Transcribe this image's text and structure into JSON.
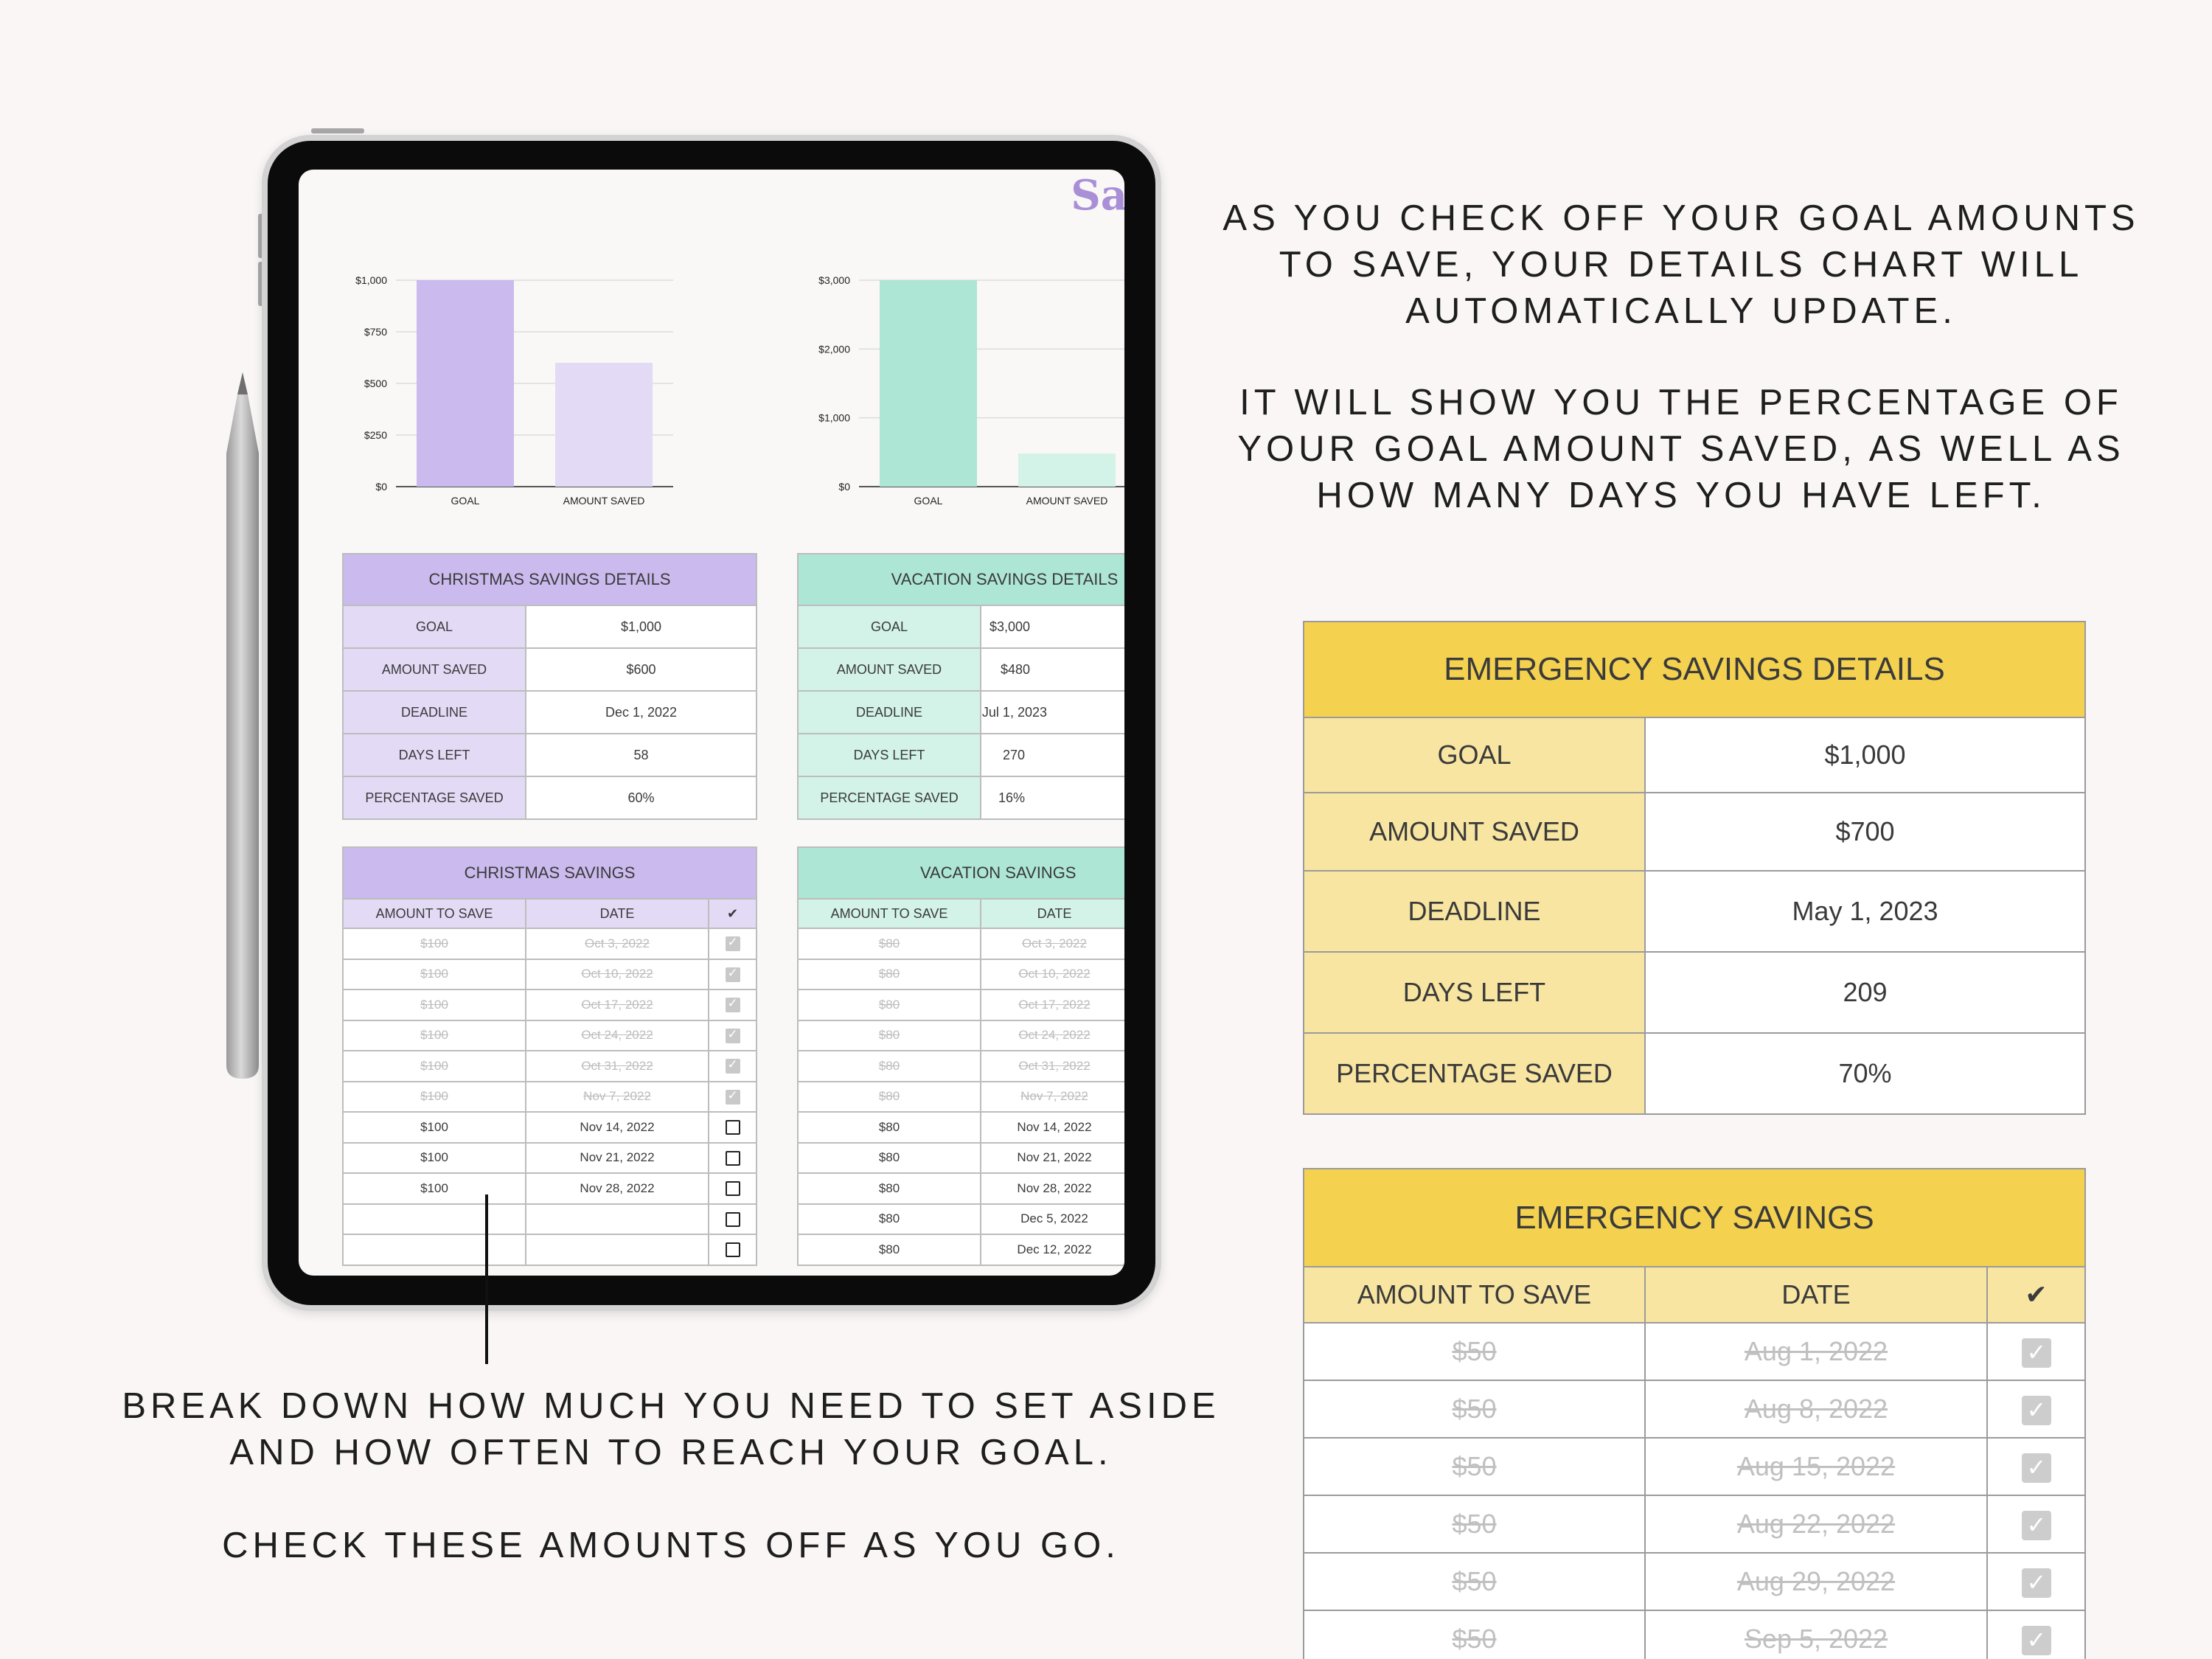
{
  "tablet": {
    "brand_fragment": "Sa",
    "christmas": {
      "details_title": "CHRISTMAS SAVINGS DETAILS",
      "details": [
        {
          "label": "GOAL",
          "value": "$1,000"
        },
        {
          "label": "AMOUNT SAVED",
          "value": "$600"
        },
        {
          "label": "DEADLINE",
          "value": "Dec 1, 2022"
        },
        {
          "label": "DAYS LEFT",
          "value": "58"
        },
        {
          "label": "PERCENTAGE SAVED",
          "value": "60%"
        }
      ],
      "savings_title": "CHRISTMAS SAVINGS",
      "col_amount": "AMOUNT TO SAVE",
      "col_date": "DATE",
      "col_check": "✔",
      "rows": [
        {
          "amount": "$100",
          "date": "Oct 3, 2022",
          "checked": true
        },
        {
          "amount": "$100",
          "date": "Oct 10, 2022",
          "checked": true
        },
        {
          "amount": "$100",
          "date": "Oct 17, 2022",
          "checked": true
        },
        {
          "amount": "$100",
          "date": "Oct 24, 2022",
          "checked": true
        },
        {
          "amount": "$100",
          "date": "Oct 31, 2022",
          "checked": true
        },
        {
          "amount": "$100",
          "date": "Nov 7, 2022",
          "checked": true
        },
        {
          "amount": "$100",
          "date": "Nov 14, 2022",
          "checked": false
        },
        {
          "amount": "$100",
          "date": "Nov 21, 2022",
          "checked": false
        },
        {
          "amount": "$100",
          "date": "Nov 28, 2022",
          "checked": false
        },
        {
          "amount": "",
          "date": "",
          "checked": false
        },
        {
          "amount": "",
          "date": "",
          "checked": false
        }
      ]
    },
    "vacation": {
      "details_title": "VACATION SAVINGS DETAILS",
      "details": [
        {
          "label": "GOAL",
          "value": "$3,000"
        },
        {
          "label": "AMOUNT SAVED",
          "value": "$480"
        },
        {
          "label": "DEADLINE",
          "value": "Jul 1, 2023"
        },
        {
          "label": "DAYS LEFT",
          "value": "270"
        },
        {
          "label": "PERCENTAGE SAVED",
          "value": "16%"
        }
      ],
      "savings_title": "VACATION SAVINGS",
      "col_amount": "AMOUNT TO SAVE",
      "col_date": "DATE",
      "rows": [
        {
          "amount": "$80",
          "date": "Oct 3, 2022",
          "checked": true
        },
        {
          "amount": "$80",
          "date": "Oct 10, 2022",
          "checked": true
        },
        {
          "amount": "$80",
          "date": "Oct 17, 2022",
          "checked": true
        },
        {
          "amount": "$80",
          "date": "Oct 24, 2022",
          "checked": true
        },
        {
          "amount": "$80",
          "date": "Oct 31, 2022",
          "checked": true
        },
        {
          "amount": "$80",
          "date": "Nov 7, 2022",
          "checked": true
        },
        {
          "amount": "$80",
          "date": "Nov 14, 2022",
          "checked": false
        },
        {
          "amount": "$80",
          "date": "Nov 21, 2022",
          "checked": false
        },
        {
          "amount": "$80",
          "date": "Nov 28, 2022",
          "checked": false
        },
        {
          "amount": "$80",
          "date": "Dec 5, 2022",
          "checked": false
        },
        {
          "amount": "$80",
          "date": "Dec 12, 2022",
          "checked": false
        }
      ]
    }
  },
  "captions": {
    "top_right_1": "AS YOU CHECK OFF YOUR GOAL AMOUNTS TO SAVE, YOUR DETAILS CHART WILL AUTOMATICALLY UPDATE.",
    "top_right_2": "IT WILL SHOW YOU THE PERCENTAGE OF YOUR GOAL AMOUNT SAVED, AS WELL AS HOW MANY DAYS YOU HAVE LEFT.",
    "bottom_left_1": "BREAK DOWN HOW MUCH YOU NEED TO SET ASIDE AND HOW OFTEN TO REACH YOUR GOAL.",
    "bottom_left_2": "CHECK THESE AMOUNTS OFF AS YOU GO."
  },
  "emergency": {
    "details_title": "EMERGENCY SAVINGS DETAILS",
    "details": [
      {
        "label": "GOAL",
        "value": "$1,000"
      },
      {
        "label": "AMOUNT SAVED",
        "value": "$700"
      },
      {
        "label": "DEADLINE",
        "value": "May 1, 2023"
      },
      {
        "label": "DAYS LEFT",
        "value": "209"
      },
      {
        "label": "PERCENTAGE SAVED",
        "value": "70%"
      }
    ],
    "savings_title": "EMERGENCY SAVINGS",
    "col_amount": "AMOUNT TO SAVE",
    "col_date": "DATE",
    "col_check": "✔",
    "rows": [
      {
        "amount": "$50",
        "date": "Aug 1, 2022",
        "checked": true
      },
      {
        "amount": "$50",
        "date": "Aug 8, 2022",
        "checked": true
      },
      {
        "amount": "$50",
        "date": "Aug 15, 2022",
        "checked": true
      },
      {
        "amount": "$50",
        "date": "Aug 22, 2022",
        "checked": true
      },
      {
        "amount": "$50",
        "date": "Aug 29, 2022",
        "checked": true
      },
      {
        "amount": "$50",
        "date": "Sep 5, 2022",
        "checked": true
      }
    ]
  },
  "colors": {
    "purple_dark": "#cbbaee",
    "purple_light": "#e3daf6",
    "mint_dark": "#ade6d5",
    "mint_light": "#d3f2e8",
    "yellow_dark": "#f4d24f",
    "yellow_light": "#f7e5a1"
  },
  "chart_data": [
    {
      "type": "bar",
      "categories": [
        "GOAL",
        "AMOUNT SAVED"
      ],
      "values": [
        1000,
        600
      ],
      "colors": [
        "#cbbaee",
        "#e3daf6"
      ],
      "ylim": [
        0,
        1000
      ],
      "yticks": [
        0,
        250,
        500,
        750,
        1000
      ],
      "ytick_labels": [
        "$0",
        "$250",
        "$500",
        "$750",
        "$1,000"
      ],
      "grid": true
    },
    {
      "type": "bar",
      "categories": [
        "GOAL",
        "AMOUNT SAVED"
      ],
      "values": [
        3000,
        480
      ],
      "colors": [
        "#ade6d5",
        "#d3f2e8"
      ],
      "ylim": [
        0,
        3000
      ],
      "yticks": [
        0,
        1000,
        2000,
        3000
      ],
      "ytick_labels": [
        "$0",
        "$1,000",
        "$2,000",
        "$3,000"
      ],
      "grid": true
    }
  ]
}
